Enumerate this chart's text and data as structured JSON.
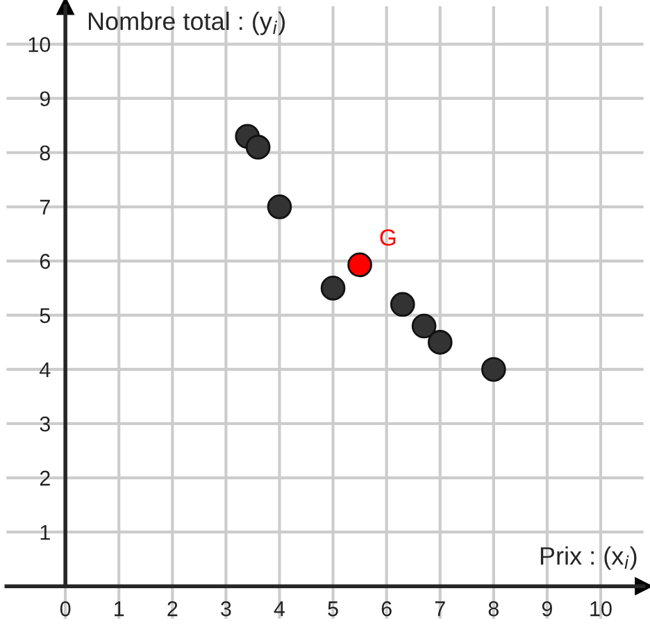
{
  "chart_data": {
    "type": "scatter",
    "xlabel": "Prix : (x$_{i}$)",
    "ylabel": "Nombre total : (y$_{i}$)",
    "series": [
      {
        "color": "#333333",
        "x": [
          3.4,
          3.6,
          4,
          5,
          6.3,
          6.7,
          7,
          8
        ],
        "values": [
          8.3,
          8.1,
          7,
          5.5,
          5.2,
          4.8,
          4.5,
          4
        ]
      },
      {
        "color": "#ff0000",
        "x": [
          5.5
        ],
        "values": [
          5.93
        ]
      }
    ],
    "annotations": [
      {
        "text": "G",
        "x": 5.5,
        "y": 5.93
      }
    ],
    "xlim": [
      -1.1,
      10.8
    ],
    "ylim": [
      -0.6,
      10.7
    ],
    "xticks": [
      0,
      1,
      2,
      3,
      4,
      5,
      6,
      7,
      8,
      9,
      10
    ],
    "yticks": [
      1,
      2,
      3,
      4,
      5,
      6,
      7,
      8,
      9,
      10
    ],
    "grid": true,
    "marker": "circle",
    "legend": false
  }
}
